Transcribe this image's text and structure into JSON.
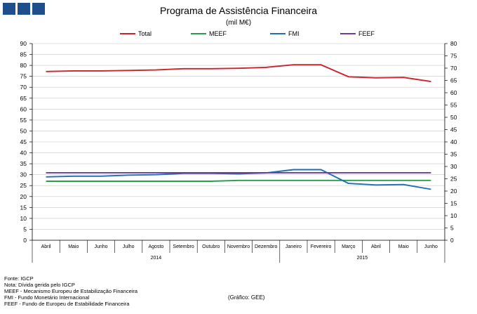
{
  "header": {
    "title": "Programa de Assistência Financeira",
    "subtitle": "(mil M€)"
  },
  "colors": {
    "logo": "#1f4e8c",
    "total": "#cc2229",
    "meef": "#2a9d4a",
    "fmi": "#1f6fb4",
    "feef": "#6a3d9a",
    "grid": "#c8c8c8"
  },
  "legend": {
    "total": "Total",
    "meef": "MEEF",
    "fmi": "FMI",
    "feef": "FEEF"
  },
  "chart_data": {
    "type": "line",
    "categories": [
      "Abril",
      "Maio",
      "Junho",
      "Julho",
      "Agosto",
      "Setembro",
      "Outubro",
      "Novembro",
      "Dezembro",
      "Janeiro",
      "Fevereiro",
      "Março",
      "Abril",
      "Maio",
      "Junho"
    ],
    "year_groups": [
      {
        "label": "2014",
        "start": 0,
        "end": 8
      },
      {
        "label": "2015",
        "start": 9,
        "end": 14
      }
    ],
    "left_axis": {
      "ylim": [
        0,
        90
      ],
      "ticks": [
        0,
        5,
        10,
        15,
        20,
        25,
        30,
        35,
        40,
        45,
        50,
        55,
        60,
        65,
        70,
        75,
        80,
        85,
        90
      ]
    },
    "right_axis": {
      "ylim": [
        0,
        80
      ],
      "ticks": [
        0,
        5,
        10,
        15,
        20,
        25,
        30,
        35,
        40,
        45,
        50,
        55,
        60,
        65,
        70,
        75,
        80
      ]
    },
    "grid": "horizontal",
    "legend_position": "top",
    "series": [
      {
        "name": "Total",
        "axis": "left",
        "color": "#cc2229",
        "values": [
          77.2,
          77.5,
          77.5,
          77.7,
          77.9,
          78.5,
          78.5,
          78.7,
          79.1,
          80.3,
          80.3,
          74.8,
          74.3,
          74.5,
          72.6
        ]
      },
      {
        "name": "MEEF",
        "axis": "left",
        "color": "#2a9d4a",
        "values": [
          27.0,
          27.0,
          27.0,
          27.0,
          27.0,
          27.0,
          27.0,
          27.4,
          27.4,
          27.4,
          27.4,
          27.4,
          27.4,
          27.4,
          27.4
        ]
      },
      {
        "name": "FMI",
        "axis": "left",
        "color": "#1f6fb4",
        "values": [
          29.0,
          29.3,
          29.3,
          29.8,
          30.0,
          30.6,
          30.6,
          30.4,
          30.8,
          32.3,
          32.3,
          26.0,
          25.3,
          25.5,
          23.3
        ]
      },
      {
        "name": "FEEF",
        "axis": "left",
        "color": "#6a3d9a",
        "values": [
          30.9,
          30.9,
          30.9,
          30.9,
          30.9,
          30.9,
          30.9,
          30.9,
          30.9,
          30.9,
          30.9,
          30.9,
          30.9,
          30.9,
          30.9
        ]
      }
    ]
  },
  "notes": [
    "Fonte: IGCP",
    "Nota: Dívida gerida pelo IGCP",
    "MEEF - Mecanismo Europeu de Estabilização Financeira",
    "FMI - Fundo Monetário Internacional",
    "FEEF - Fundo de Europeu de Estabilidade Financeira"
  ],
  "credit": "(Gráfico: GEE)"
}
